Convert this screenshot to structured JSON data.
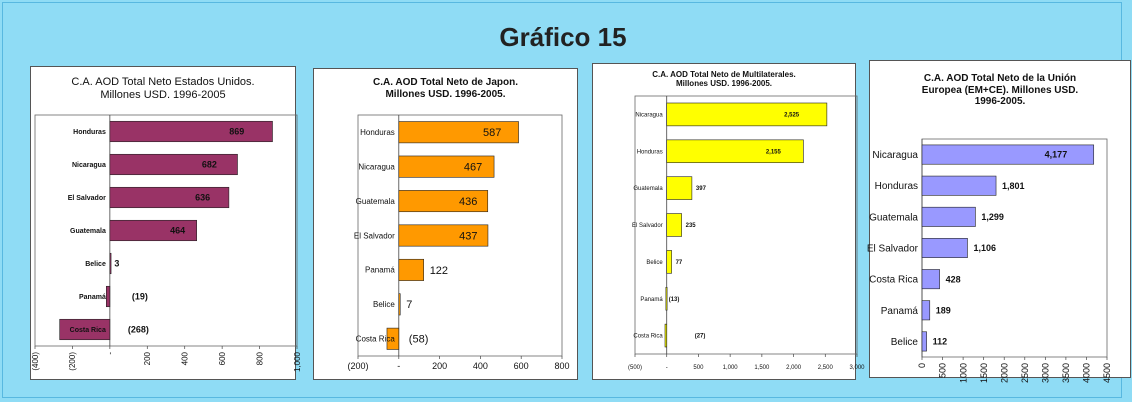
{
  "main_title": "Gráfico 15",
  "chart_data": [
    {
      "type": "bar",
      "orientation": "horizontal",
      "title_lines": [
        "C.A. AOD Total Neto Estados Unidos.",
        "Millones USD. 1996-2005"
      ],
      "categories": [
        "Honduras",
        "Nicaragua",
        "El Salvador",
        "Guatemala",
        "Belice",
        "Panamá",
        "Costa Rica"
      ],
      "values": [
        869,
        682,
        636,
        464,
        3,
        -19,
        -268
      ],
      "value_labels": [
        "869",
        "682",
        "636",
        "464",
        "3",
        "(19)",
        "(268)"
      ],
      "xlim": [
        -400,
        1000
      ],
      "ticks": [
        -400,
        -200,
        0,
        200,
        400,
        600,
        800,
        1000
      ],
      "tick_labels": [
        "(400)",
        "(200)",
        "-",
        "200",
        "400",
        "600",
        "800",
        "1,000"
      ],
      "color": "#993366",
      "grid": false
    },
    {
      "type": "bar",
      "orientation": "horizontal",
      "title_lines": [
        "C.A. AOD Total Neto de Japon.",
        "Millones USD. 1996-2005."
      ],
      "categories": [
        "Honduras",
        "Nicaragua",
        "Guatemala",
        "El Salvador",
        "Panamá",
        "Belice",
        "Costa Rica"
      ],
      "values": [
        587,
        467,
        436,
        437,
        122,
        7,
        -58
      ],
      "value_labels": [
        "587",
        "467",
        "436",
        "437",
        "122",
        "7",
        "(58)"
      ],
      "xlim": [
        -200,
        800
      ],
      "ticks": [
        -200,
        0,
        200,
        400,
        600,
        800
      ],
      "tick_labels": [
        "(200)",
        "-",
        "200",
        "400",
        "600",
        "800"
      ],
      "color": "#ff9900",
      "grid": false
    },
    {
      "type": "bar",
      "orientation": "horizontal",
      "title_lines": [
        "C.A. AOD Total Neto de Multilaterales.",
        "Millones USD. 1996-2005."
      ],
      "categories": [
        "Nicaragua",
        "Honduras",
        "Guatemala",
        "El Salvador",
        "Belice",
        "Panamá",
        "Costa Rica"
      ],
      "values": [
        2525,
        2155,
        397,
        235,
        77,
        -13,
        -27
      ],
      "value_labels": [
        "2,525",
        "2,155",
        "397",
        "235",
        "77",
        "(13)",
        "(27)"
      ],
      "xlim": [
        -500,
        3000
      ],
      "ticks": [
        -500,
        0,
        500,
        1000,
        1500,
        2000,
        2500,
        3000
      ],
      "tick_labels": [
        "(500)",
        "-",
        "500",
        "1,000",
        "1,500",
        "2,000",
        "2,500",
        "3,000"
      ],
      "color": "#ffff00",
      "grid": false
    },
    {
      "type": "bar",
      "orientation": "horizontal",
      "title_lines": [
        "C.A. AOD Total Neto de la Unión",
        "Europea (EM+CE). Millones USD.",
        "1996-2005."
      ],
      "categories": [
        "Nicaragua",
        "Honduras",
        "Guatemala",
        "El Salvador",
        "Costa Rica",
        "Panamá",
        "Belice"
      ],
      "values": [
        4177,
        1801,
        1299,
        1106,
        428,
        189,
        112
      ],
      "value_labels": [
        "4,177",
        "1,801",
        "1,299",
        "1,106",
        "428",
        "189",
        "112"
      ],
      "xlim": [
        0,
        4500
      ],
      "ticks": [
        0,
        500,
        1000,
        1500,
        2000,
        2500,
        3000,
        3500,
        4000,
        4500
      ],
      "tick_labels": [
        "0",
        "500",
        "1000",
        "1500",
        "2000",
        "2500",
        "3000",
        "3500",
        "4000",
        "4500"
      ],
      "color": "#9999ff",
      "grid": false
    }
  ]
}
